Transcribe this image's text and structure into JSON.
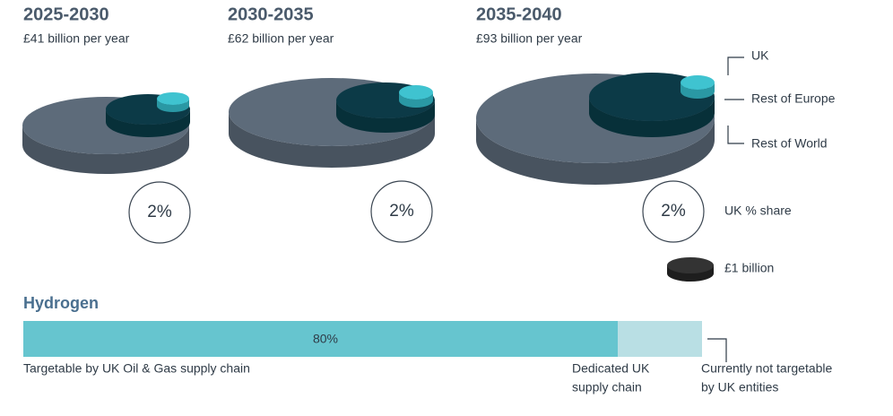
{
  "panels": [
    {
      "period": "2025-2030",
      "amount": "£41 billion per year",
      "share": "2%"
    },
    {
      "period": "2030-2035",
      "amount": "£62 billion per year",
      "share": "2%"
    },
    {
      "period": "2035-2040",
      "amount": "£93 billion per year",
      "share": "2%"
    }
  ],
  "legend": {
    "uk": "UK",
    "rest_of_europe": "Rest of Europe",
    "rest_of_world": "Rest of World",
    "share": "UK % share",
    "unit": "£1 billion"
  },
  "hydrogen": {
    "title": "Hydrogen",
    "bar_label": "80%",
    "targetable": "Targetable by UK Oil & Gas supply chain",
    "dedicated": [
      "Dedicated UK",
      "supply chain"
    ],
    "not_targetable": [
      "Currently not targetable",
      "by UK entities"
    ]
  }
}
